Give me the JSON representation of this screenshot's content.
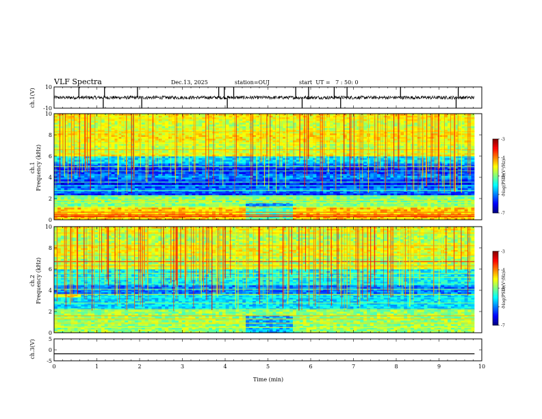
{
  "chart_data": {
    "type": "heatmap",
    "header": {
      "title": "VLF Spectra",
      "date": "Dec.13, 2025",
      "station": "station=OUJ",
      "start": "start  UT =   7 : 50: 0"
    },
    "x_axis": {
      "label": "Time  (min)",
      "range": [
        0,
        10
      ],
      "ticks": [
        0,
        1,
        2,
        3,
        4,
        5,
        6,
        7,
        8,
        9,
        10
      ],
      "tick_labels": [
        "0",
        "1",
        "2",
        "3",
        "4",
        "5",
        "6",
        "7",
        "8",
        "9",
        "10"
      ],
      "data_end": 9.83
    },
    "waveform_ch1": {
      "ylabel": "ch.1(V)",
      "range": [
        -10,
        10
      ],
      "tick_labels": [
        "10",
        "-10"
      ],
      "baseline": 0.0,
      "spike_times": [
        0.58,
        1.15,
        1.18,
        1.95,
        2.05,
        3.85,
        3.98,
        4.05,
        4.2,
        5.65,
        5.8,
        5.95,
        6.55,
        6.7,
        6.85,
        8.1,
        9.4,
        9.45
      ]
    },
    "spectrogram_ch1": {
      "ylabel": "ch.1\nFrequency (kHz)",
      "ylabel_line1": "ch.1",
      "ylabel_line2": "Frequency (kHz)",
      "range": [
        0,
        10
      ],
      "tick_labels": [
        "0",
        "2",
        "4",
        "6",
        "8",
        "10"
      ],
      "tick_values": [
        0,
        2,
        4,
        6,
        8,
        10
      ],
      "bands_kHz": [
        {
          "f": 0.3,
          "level": -3.4
        },
        {
          "f": 0.45,
          "level": -3.6
        },
        {
          "f": 0.7,
          "level": -4.0
        },
        {
          "f": 1.2,
          "level": -4.5
        },
        {
          "f": 1.6,
          "level": -4.6
        },
        {
          "f": 1.85,
          "level": -4.4
        },
        {
          "f": 2.2,
          "level": -5.0
        },
        {
          "f": 2.75,
          "level": -5.2
        },
        {
          "f": 3.2,
          "level": -5.4
        },
        {
          "f": 3.55,
          "level": -5.2
        },
        {
          "f": 4.6,
          "level": -5.3
        },
        {
          "f": 5.0,
          "level": -5.0
        },
        {
          "f": 6.3,
          "level": -4.8
        },
        {
          "f": 6.6,
          "level": -4.2
        },
        {
          "f": 7.2,
          "level": -4.5
        },
        {
          "f": 8.3,
          "level": -4.3
        },
        {
          "f": 9.5,
          "level": -4.4
        }
      ]
    },
    "spectrogram_ch2": {
      "ylabel": "ch.2\nFrequency (kHz)",
      "ylabel_line1": "ch.2",
      "ylabel_line2": "Frequency (kHz)",
      "range": [
        0,
        10
      ],
      "tick_labels": [
        "0",
        "2",
        "4",
        "6",
        "8",
        "10"
      ],
      "tick_values": [
        0,
        2,
        4,
        6,
        8,
        10
      ],
      "bands_kHz": [
        {
          "f": 0.5,
          "level": -4.6
        },
        {
          "f": 0.9,
          "level": -4.4
        },
        {
          "f": 1.3,
          "level": -4.3
        },
        {
          "f": 1.6,
          "level": -4.2
        },
        {
          "f": 2.2,
          "level": -4.8
        },
        {
          "f": 2.8,
          "level": -5.0
        },
        {
          "f": 3.3,
          "level": -5.4
        },
        {
          "f": 3.6,
          "level": -4.6
        },
        {
          "f": 4.1,
          "level": -5.0
        },
        {
          "f": 4.6,
          "level": -5.2
        },
        {
          "f": 5.2,
          "level": -4.9
        },
        {
          "f": 5.6,
          "level": -4.7
        },
        {
          "f": 6.3,
          "level": -4.2
        },
        {
          "f": 6.7,
          "level": -3.6
        },
        {
          "f": 7.3,
          "level": -4.3
        },
        {
          "f": 8.2,
          "level": -4.2
        },
        {
          "f": 9.4,
          "level": -4.3
        }
      ]
    },
    "waveform_ch3": {
      "ylabel": "ch.3(V)",
      "range": [
        -5,
        5
      ],
      "tick_labels": [
        "5",
        "0",
        "-5"
      ],
      "tick_values": [
        5,
        0,
        -5
      ],
      "baseline": -1.8
    },
    "colorbar": {
      "label": "log(PSD)(V²/Hz)",
      "range": [
        -7,
        -3
      ],
      "tick_labels": [
        "-3",
        "-4",
        "-5",
        "-6",
        "-7"
      ],
      "tick_values": [
        -3,
        -4,
        -5,
        -6,
        -7
      ],
      "colormap": "jet"
    }
  }
}
